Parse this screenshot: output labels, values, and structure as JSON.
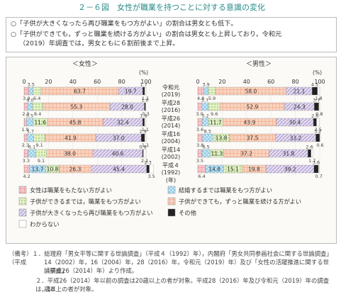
{
  "title": "２－６図　女性が職業を持つことに対する意識の変化",
  "summary": [
    "○「子供が大きくなったら再び職業をもつ方がよい」の割合は男女とも低下。",
    "○「子供ができても，ずっと職業を続ける方がよい」の割合は男女とも上昇しており，令和元",
    "（2019）年調査では，男女ともに６割前後まで上昇。"
  ],
  "colors": {
    "none": "#f2a3a6",
    "untilMarriage": "#a9d8f0",
    "untilChild": "#cce6a0",
    "continue": "#f3b79a",
    "returnAfter": "#cbbde0",
    "other": "#1a1a1a",
    "dk": "#ffffff"
  },
  "chart_data": {
    "type": "bar",
    "orientation": "horizontal",
    "stacked": true,
    "percent_label": "(%)",
    "xticks": [
      0,
      20,
      40,
      60,
      80,
      100
    ],
    "xlim": [
      0,
      100
    ],
    "categories": [
      [
        "令和元",
        "(2019)"
      ],
      [
        "平成28",
        "(2016)"
      ],
      [
        "平成26",
        "(2014)"
      ],
      [
        "平成16",
        "(2004)"
      ],
      [
        "平成14",
        "(2002)"
      ],
      [
        "平成４",
        "(1992)"
      ]
    ],
    "year_suffix": "(年)",
    "panels": [
      {
        "name": "＜女性＞",
        "bars": [
          [
            3.9,
            3.5,
            6.4,
            63.7,
            19.7,
            1.7,
            1.1
          ],
          [
            2.9,
            4.0,
            8.4,
            55.3,
            28.0,
            1.0,
            0.3
          ],
          [
            1.9,
            5.5,
            11.6,
            45.8,
            32.4,
            1.6,
            1.1
          ],
          [
            2.3,
            5.7,
            9.1,
            41.9,
            37.0,
            2.9,
            1.1
          ],
          [
            3.3,
            6.1,
            9.1,
            38.0,
            40.6,
            0.8,
            2.1
          ],
          [
            4.2,
            13.7,
            10.8,
            26.3,
            45.4,
            2.3,
            3.5
          ]
        ],
        "labels": [
          [
            "3.9",
            "3.5",
            "6.4",
            "63.7",
            "19.7",
            "1.7",
            "1.1"
          ],
          [
            "2.9",
            "4.0",
            "8.4",
            "55.3",
            "28.0",
            "1.0",
            "0.3"
          ],
          [
            "1.9",
            "5.5",
            "11.6",
            "45.8",
            "32.4",
            "1.6",
            "1.1"
          ],
          [
            "2.3",
            "5.7",
            "9.1",
            "41.9",
            "37.0",
            "2.9",
            "1.1"
          ],
          [
            "3.3",
            "6.1",
            "9.1",
            "38.0",
            "40.6",
            "0.8",
            "2.1"
          ],
          [
            "4.2",
            "13.7",
            "10.8",
            "26.3",
            "45.4",
            "2.3",
            "3.5"
          ]
        ]
      },
      {
        "name": "＜男性＞",
        "bars": [
          [
            4.8,
            3.9,
            5.9,
            58.0,
            21.1,
            4.5,
            1.8
          ],
          [
            3.0,
            5.7,
            9.6,
            52.9,
            24.3,
            3.7,
            0.8
          ],
          [
            3.6,
            5.2,
            11.7,
            43.9,
            30.4,
            2.6,
            2.5
          ],
          [
            3.8,
            8.5,
            13.8,
            37.5,
            33.2,
            3.2,
            0.6
          ],
          [
            3.5,
            6.5,
            11.3,
            37.2,
            31.8,
            2.6,
            1.7
          ],
          [
            6.4,
            14.8,
            15.1,
            19.8,
            39.2,
            3.6,
            0.7
          ]
        ],
        "labels": [
          [
            "4.8",
            "3.9",
            "5.9",
            "58.0",
            "21.1",
            "4.5",
            "1.8"
          ],
          [
            "3.0",
            "5.7",
            "9.6",
            "52.9",
            "24.3",
            "3.7",
            "0.8"
          ],
          [
            "3.6",
            "5.2",
            "11.7",
            "43.9",
            "30.4",
            "2.6",
            "2.5"
          ],
          [
            "3.8",
            "8.5",
            "13.8",
            "37.5",
            "33.2",
            "3.2",
            "0.6"
          ],
          [
            "3.5",
            "6.5",
            "11.3",
            "37.2",
            "31.8",
            "2.6",
            "1.7"
          ],
          [
            "6.4",
            "14.8",
            "15.1",
            "19.8",
            "39.2",
            "3.6",
            "0.7"
          ]
        ]
      }
    ],
    "legend": [
      {
        "key": "none",
        "label": "女性は職業をもたない方がよい"
      },
      {
        "key": "untilMarriage",
        "label": "結婚するまでは職業をもつ方がよい"
      },
      {
        "key": "untilChild",
        "label": "子供ができるまでは，職業をもつ方がよい"
      },
      {
        "key": "continue",
        "label": "子供ができても，ずっと職業を続ける方がよい"
      },
      {
        "key": "returnAfter",
        "label": "子供が大きくなったら再び職業をもつ方がよい"
      },
      {
        "key": "other",
        "label": "その他"
      },
      {
        "key": "dk",
        "label": "わからない"
      }
    ]
  },
  "notes": [
    "（備考）１．総理府「男女平等に関する世論調査」（平成４（1992）年），内閣府「男女共同参画社会に関する世論調査」（平成",
    "14（2002）年，16（2004）年，28（2016）年，令和元（2019）年）及び「女性の活躍推進に関する世論調査」",
    "（平成26（2014）年）より作成。",
    "２．平成26（2014）年以前の調査は20歳以上の者が対象。平成28（2016）年及び令和元（2019）年の調査は，18",
    "歳以上の者が対象。"
  ]
}
